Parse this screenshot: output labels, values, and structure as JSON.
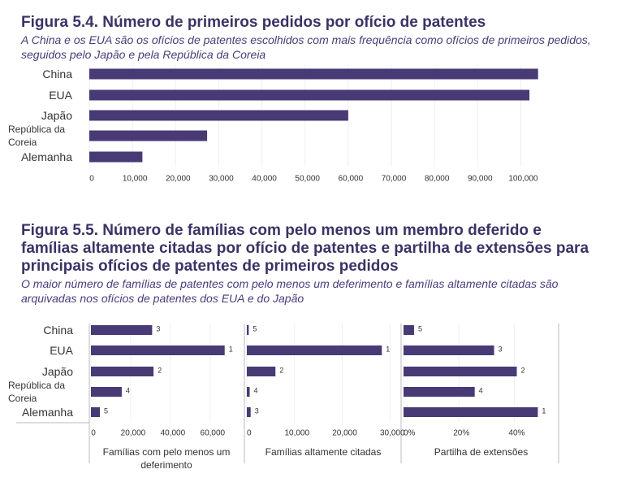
{
  "chart_data": [
    {
      "type": "bar",
      "orientation": "horizontal",
      "title": "Figura 5.4. Número de primeiros pedidos por ofício de patentes",
      "subtitle": "A China e os EUA são os ofícios de patentes escolhidos com mais frequência como ofícios de primeiros pedidos, seguidos pelo Japão e pela República da Coreia",
      "categories": [
        "China",
        "EUA",
        "Japão",
        "República da Coreia",
        "Alemanha"
      ],
      "values": [
        104000,
        102000,
        60000,
        27300,
        12300
      ],
      "color": "#473a75",
      "xlim": [
        0,
        105000
      ],
      "xticks": [
        0,
        {
          "value": 10000,
          "label": "10,000"
        },
        {
          "value": 20000,
          "label": "20,000"
        },
        {
          "value": 30000,
          "label": "30,000"
        },
        {
          "value": 40000,
          "label": "40,000"
        },
        {
          "value": 50000,
          "label": "50,000"
        },
        {
          "value": 60000,
          "label": "60,000"
        },
        {
          "value": 70000,
          "label": "70,000"
        },
        {
          "value": 80000,
          "label": "80,000"
        },
        {
          "value": 90000,
          "label": "90,000"
        },
        {
          "value": 100000,
          "label": "100,000"
        }
      ]
    },
    {
      "type": "bar",
      "orientation": "horizontal",
      "title": "Figura 5.5. Número de famílias com pelo menos um membro deferido e famílias altamente citadas por ofício de patentes e partilha de extensões para principais ofícios de patentes de primeiros pedidos",
      "subtitle": "O maior número de famílias de patentes com pelo menos um deferimento e famílias altamente citadas são arquivadas nos ofícios de patentes dos EUA e do Japão",
      "categories": [
        "China",
        "EUA",
        "Japão",
        "República da Coreia",
        "Alemanha"
      ],
      "color": "#473a75",
      "panels": [
        {
          "xlabel": "Famílias com pelo menos um deferimento",
          "values": [
            30800,
            67300,
            31500,
            15500,
            4500
          ],
          "ranks": [
            3,
            1,
            2,
            4,
            5
          ],
          "xlim": [
            0,
            76000
          ],
          "xticks": [
            0,
            {
              "value": 20000,
              "label": "20,000"
            },
            {
              "value": 40000,
              "label": "40,000"
            },
            {
              "value": 60000,
              "label": "60,000"
            }
          ]
        },
        {
          "xlabel": "Famílias altamente citadas",
          "values": [
            400,
            28300,
            6000,
            600,
            800
          ],
          "ranks": [
            5,
            1,
            2,
            4,
            3
          ],
          "xlim": [
            0,
            32000
          ],
          "xticks": [
            0,
            {
              "value": 10000,
              "label": "10,000"
            },
            {
              "value": 20000,
              "label": "20,000"
            },
            {
              "value": 30000,
              "label": "30,000"
            }
          ]
        },
        {
          "xlabel": "Partilha de extensões",
          "values": [
            3.8,
            32.7,
            40.9,
            25.7,
            48.5
          ],
          "ranks": [
            5,
            3,
            2,
            4,
            1
          ],
          "xlim": [
            0,
            56
          ],
          "xticks": [
            {
              "value": 0,
              "label": "0%"
            },
            {
              "value": 20,
              "label": "20%"
            },
            {
              "value": 40,
              "label": "40%"
            }
          ]
        }
      ]
    }
  ]
}
